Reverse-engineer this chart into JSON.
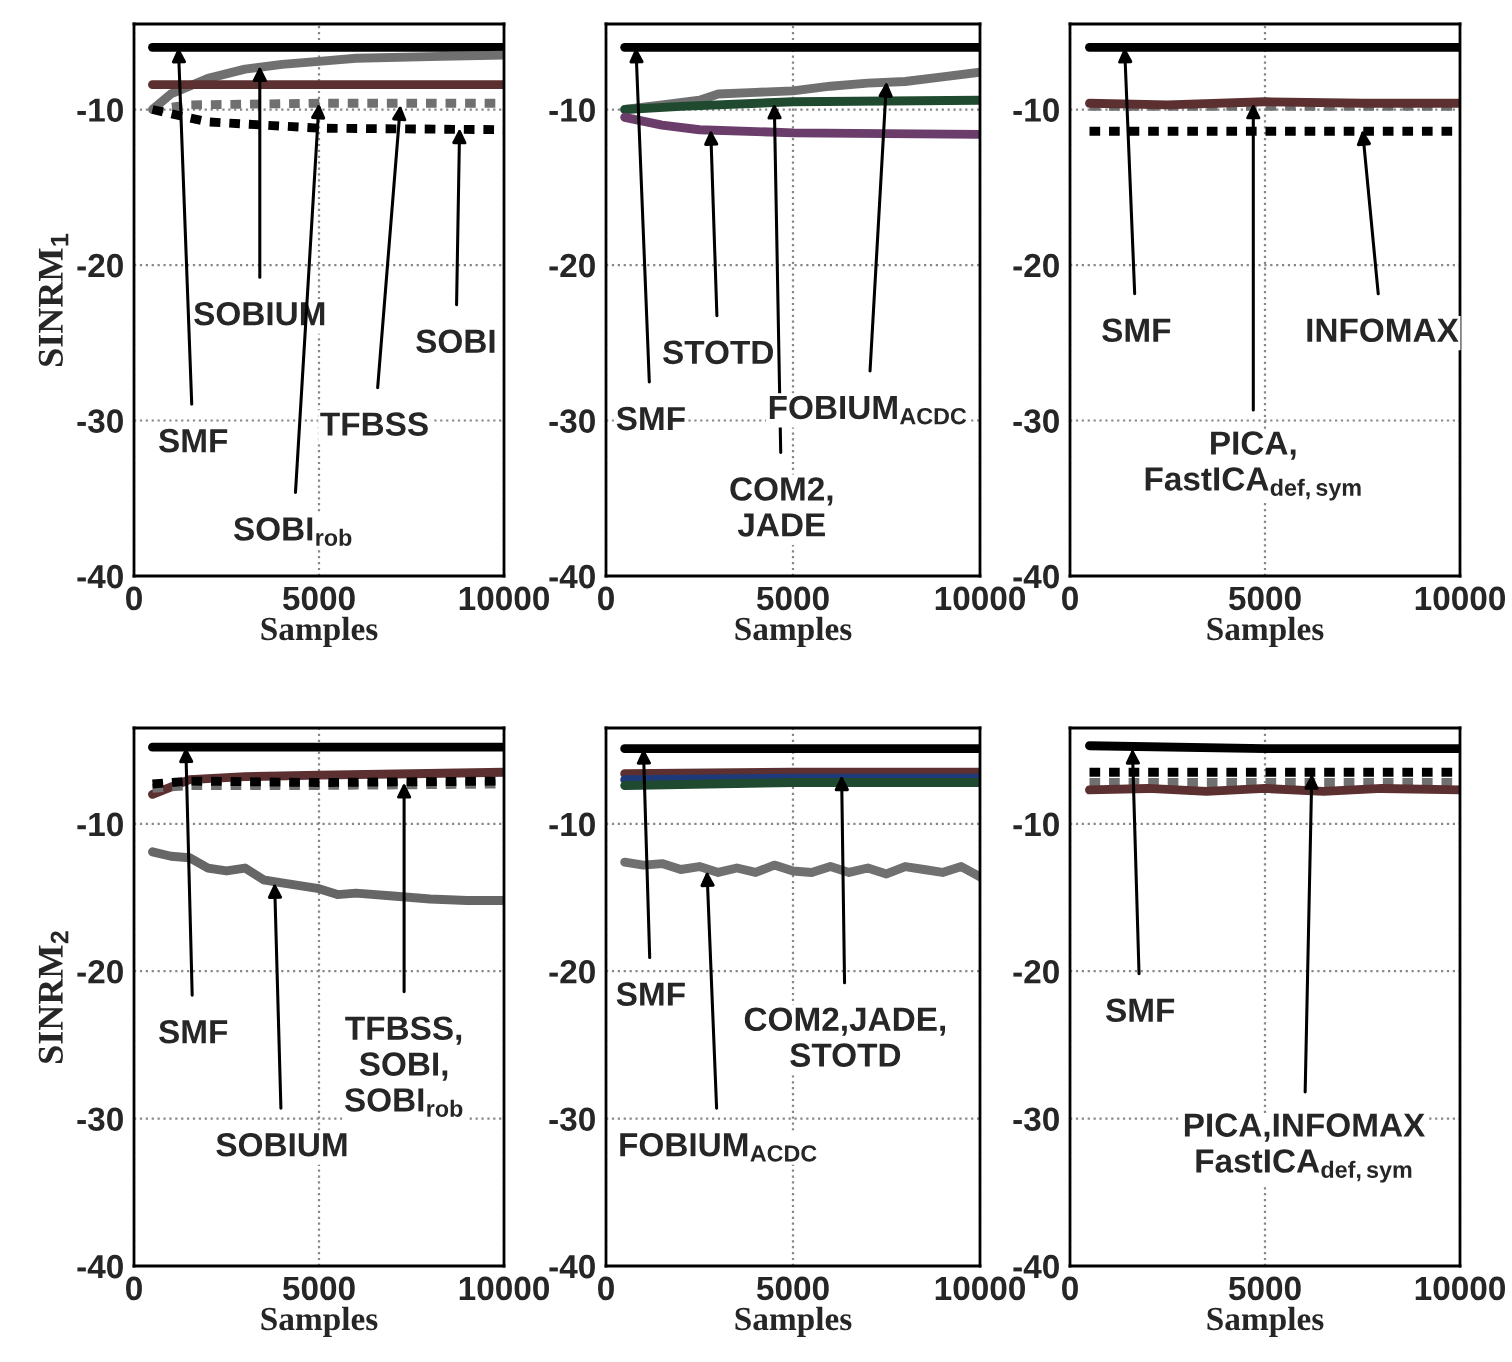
{
  "chart_data": [
    {
      "type": "line",
      "xlabel": "Samples",
      "ylabel": "SINRM$_{1}$",
      "xlim": [
        0,
        10000
      ],
      "xticks": [
        0,
        5000,
        10000
      ],
      "ylim": [
        -40,
        -4.5
      ],
      "yticks": [
        -40,
        -30,
        -20,
        -10
      ],
      "grid": true,
      "marker": "none",
      "series": [
        {
          "color": "#000000",
          "line_style": "solid",
          "x": [
            500,
            2000,
            5000,
            10000
          ],
          "values": [
            -6,
            -6,
            -6,
            -6
          ]
        },
        {
          "color": "#707070",
          "line_style": "solid",
          "x": [
            500,
            1000,
            1500,
            2000,
            3000,
            4000,
            5000,
            6000,
            8000,
            10000
          ],
          "values": [
            -10,
            -9,
            -8.5,
            -8,
            -7.4,
            -7.1,
            -6.9,
            -6.7,
            -6.6,
            -6.5
          ]
        },
        {
          "color": "#5c3030",
          "line_style": "solid",
          "x": [
            500,
            5000,
            10000
          ],
          "values": [
            -8.4,
            -8.4,
            -8.4
          ]
        },
        {
          "color": "#707070",
          "line_style": "dotted",
          "x": [
            500,
            1500,
            5000,
            10000
          ],
          "values": [
            -10,
            -9.7,
            -9.6,
            -9.6
          ]
        },
        {
          "color": "#000000",
          "line_style": "dotted",
          "x": [
            500,
            2000,
            5000,
            10000
          ],
          "values": [
            -10,
            -10.8,
            -11.2,
            -11.3
          ]
        }
      ],
      "annotations": [
        {
          "text": "SMF",
          "x": 1200,
          "y": -6
        },
        {
          "text": "SOBIUM",
          "x": 3400,
          "y": -7.2
        },
        {
          "text": "SOBI$_{rob}$",
          "x": 5000,
          "y": -9.6
        },
        {
          "text": "TFBSS",
          "x": 7200,
          "y": -9.7
        },
        {
          "text": "SOBI",
          "x": 8800,
          "y": -11.2
        }
      ]
    },
    {
      "type": "line",
      "xlabel": "Samples",
      "xlim": [
        0,
        10000
      ],
      "xticks": [
        0,
        5000,
        10000
      ],
      "ylim": [
        -40,
        -4.5
      ],
      "yticks": [
        -40,
        -30,
        -20,
        -10
      ],
      "grid": true,
      "marker": "none",
      "series": [
        {
          "color": "#000000",
          "line_style": "solid",
          "x": [
            500,
            5000,
            10000
          ],
          "values": [
            -6,
            -6,
            -6
          ]
        },
        {
          "color": "#707070",
          "line_style": "solid",
          "x": [
            500,
            1500,
            2500,
            3000,
            4000,
            5000,
            6000,
            7000,
            8000,
            9000,
            10000
          ],
          "values": [
            -10,
            -9.7,
            -9.4,
            -9.0,
            -8.9,
            -8.8,
            -8.5,
            -8.3,
            -8.2,
            -7.9,
            -7.6
          ]
        },
        {
          "color": "#1f4a30",
          "line_style": "solid",
          "x": [
            500,
            2000,
            5000,
            10000
          ],
          "values": [
            -10,
            -9.8,
            -9.5,
            -9.4
          ]
        },
        {
          "color": "#6a3d6a",
          "line_style": "solid",
          "x": [
            500,
            1500,
            2500,
            5000,
            10000
          ],
          "values": [
            -10.5,
            -11,
            -11.3,
            -11.5,
            -11.6
          ]
        }
      ],
      "annotations": [
        {
          "text": "SMF",
          "x": 800,
          "y": -6
        },
        {
          "text": "STOTD",
          "x": 2800,
          "y": -11.3
        },
        {
          "text": "COM2,\nJADE",
          "x": 4500,
          "y": -9.6
        },
        {
          "text": "FOBIUM$_{ACDC}$",
          "x": 7500,
          "y": -8.2
        }
      ]
    },
    {
      "type": "line",
      "xlabel": "Samples",
      "xlim": [
        0,
        10000
      ],
      "xticks": [
        0,
        5000,
        10000
      ],
      "ylim": [
        -40,
        -4.5
      ],
      "yticks": [
        -40,
        -30,
        -20,
        -10
      ],
      "grid": true,
      "marker": "none",
      "series": [
        {
          "color": "#000000",
          "line_style": "solid",
          "x": [
            500,
            5000,
            10000
          ],
          "values": [
            -6,
            -6,
            -6
          ]
        },
        {
          "color": "#707070",
          "line_style": "dotted",
          "x": [
            500,
            5000,
            10000
          ],
          "values": [
            -9.8,
            -9.8,
            -9.8
          ]
        },
        {
          "color": "#5c3030",
          "line_style": "solid",
          "x": [
            500,
            2500,
            5000,
            7500,
            10000
          ],
          "values": [
            -9.6,
            -9.7,
            -9.5,
            -9.6,
            -9.6
          ]
        },
        {
          "color": "#000000",
          "line_style": "dotted",
          "x": [
            500,
            5000,
            10000
          ],
          "values": [
            -11.4,
            -11.4,
            -11.4
          ]
        }
      ],
      "annotations": [
        {
          "text": "SMF",
          "x": 1400,
          "y": -6
        },
        {
          "text": "PICA,\nFastICA$_{def,sym}$",
          "x": 4700,
          "y": -9.6
        },
        {
          "text": "INFOMAX",
          "x": 7500,
          "y": -11.3
        }
      ]
    },
    {
      "type": "line",
      "xlabel": "Samples",
      "ylabel": "SINRM$_{2}$",
      "xlim": [
        0,
        10000
      ],
      "xticks": [
        0,
        5000,
        10000
      ],
      "ylim": [
        -40,
        -3.5
      ],
      "yticks": [
        -40,
        -30,
        -20,
        -10
      ],
      "grid": true,
      "marker": "none",
      "series": [
        {
          "color": "#000000",
          "line_style": "solid",
          "x": [
            500,
            5000,
            10000
          ],
          "values": [
            -4.8,
            -4.8,
            -4.8
          ]
        },
        {
          "color": "#5c3030",
          "line_style": "solid",
          "x": [
            500,
            1500,
            3000,
            5000,
            7500,
            10000
          ],
          "values": [
            -8,
            -7,
            -6.8,
            -6.7,
            -6.6,
            -6.5
          ]
        },
        {
          "color": "#707070",
          "line_style": "dotted",
          "x": [
            500,
            1500,
            5000,
            10000
          ],
          "values": [
            -7.6,
            -7.4,
            -7.4,
            -7.3
          ]
        },
        {
          "color": "#000000",
          "line_style": "dotted",
          "x": [
            500,
            1500,
            5000,
            10000
          ],
          "values": [
            -7.3,
            -7.1,
            -7.2,
            -7.1
          ]
        },
        {
          "color": "#666666",
          "line_style": "solid",
          "x": [
            500,
            1000,
            1500,
            2000,
            2500,
            3000,
            3500,
            4000,
            5000,
            5500,
            6000,
            7000,
            8000,
            9000,
            10000
          ],
          "values": [
            -11.9,
            -12.2,
            -12.3,
            -13,
            -13.2,
            -13,
            -13.8,
            -14,
            -14.4,
            -14.8,
            -14.7,
            -14.9,
            -15.1,
            -15.2,
            -15.2
          ]
        }
      ],
      "annotations": [
        {
          "text": "SMF",
          "x": 1400,
          "y": -4.8
        },
        {
          "text": "SOBIUM",
          "x": 3800,
          "y": -14
        },
        {
          "text": "TFBSS,\nSOBI,\nSOBI$_{rob}$",
          "x": 7300,
          "y": -7.2
        }
      ]
    },
    {
      "type": "line",
      "xlabel": "Samples",
      "xlim": [
        0,
        10000
      ],
      "xticks": [
        0,
        5000,
        10000
      ],
      "ylim": [
        -40,
        -3.5
      ],
      "yticks": [
        -40,
        -30,
        -20,
        -10
      ],
      "grid": true,
      "marker": "none",
      "series": [
        {
          "color": "#000000",
          "line_style": "solid",
          "x": [
            500,
            5000,
            10000
          ],
          "values": [
            -4.9,
            -4.9,
            -4.9
          ]
        },
        {
          "color": "#5c3030",
          "line_style": "solid",
          "x": [
            500,
            5000,
            10000
          ],
          "values": [
            -6.6,
            -6.5,
            -6.5
          ]
        },
        {
          "color": "#1f3a7a",
          "line_style": "solid",
          "x": [
            500,
            5000,
            10000
          ],
          "values": [
            -7.0,
            -6.9,
            -6.9
          ]
        },
        {
          "color": "#1f4a30",
          "line_style": "solid",
          "x": [
            500,
            5000,
            10000
          ],
          "values": [
            -7.4,
            -7.2,
            -7.2
          ]
        },
        {
          "color": "#707070",
          "line_style": "solid",
          "x": [
            500,
            1000,
            1500,
            2000,
            2500,
            3000,
            3500,
            4000,
            4500,
            5000,
            5500,
            6000,
            6500,
            7000,
            7500,
            8000,
            8500,
            9000,
            9500,
            10000
          ],
          "values": [
            -12.6,
            -12.8,
            -12.7,
            -13.1,
            -12.9,
            -13.3,
            -13.0,
            -13.3,
            -12.8,
            -13.2,
            -13.3,
            -12.9,
            -13.3,
            -13.0,
            -13.4,
            -12.9,
            -13.1,
            -13.3,
            -12.9,
            -13.6
          ]
        }
      ],
      "annotations": [
        {
          "text": "SMF",
          "x": 1000,
          "y": -4.9
        },
        {
          "text": "FOBIUM$_{ACDC}$",
          "x": 2700,
          "y": -13.2
        },
        {
          "text": "COM2,JADE,\nSTOTD",
          "x": 6300,
          "y": -6.7
        }
      ]
    },
    {
      "type": "line",
      "xlabel": "Samples",
      "xlim": [
        0,
        10000
      ],
      "xticks": [
        0,
        5000,
        10000
      ],
      "ylim": [
        -40,
        -3.5
      ],
      "yticks": [
        -40,
        -30,
        -20,
        -10
      ],
      "grid": true,
      "marker": "none",
      "series": [
        {
          "color": "#000000",
          "line_style": "solid",
          "x": [
            500,
            5000,
            10000
          ],
          "values": [
            -4.7,
            -4.9,
            -4.9
          ]
        },
        {
          "color": "#707070",
          "line_style": "dotted",
          "x": [
            500,
            5000,
            10000
          ],
          "values": [
            -7.2,
            -7.2,
            -7.2
          ]
        },
        {
          "color": "#5c3030",
          "line_style": "solid",
          "x": [
            500,
            2000,
            3500,
            5000,
            6500,
            8000,
            10000
          ],
          "values": [
            -7.7,
            -7.6,
            -7.8,
            -7.6,
            -7.8,
            -7.6,
            -7.7
          ]
        },
        {
          "color": "#000000",
          "line_style": "dotted",
          "x": [
            500,
            5000,
            10000
          ],
          "values": [
            -6.5,
            -6.5,
            -6.5
          ]
        }
      ],
      "annotations": [
        {
          "text": "SMF",
          "x": 1600,
          "y": -4.9
        },
        {
          "text": "PICA,INFOMAX\nFastICA$_{def,sym}$",
          "x": 6200,
          "y": -6.6
        }
      ]
    }
  ]
}
